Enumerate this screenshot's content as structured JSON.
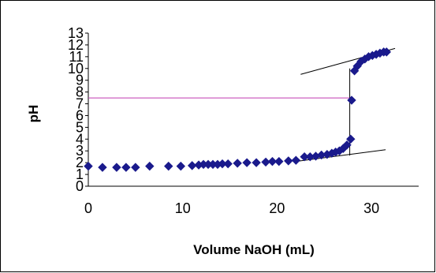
{
  "chart_data": {
    "type": "scatter",
    "xlabel": "Volume NaOH (mL)",
    "ylabel": "pH",
    "xlim": [
      0,
      35
    ],
    "ylim": [
      0,
      13
    ],
    "x_ticks": [
      0,
      10,
      20,
      30
    ],
    "x_tick_labels": [
      "0",
      "10",
      "20",
      "30"
    ],
    "y_ticks": [
      0,
      1,
      2,
      3,
      4,
      5,
      6,
      7,
      8,
      9,
      10,
      11,
      12,
      13
    ],
    "y_tick_labels": [
      "0",
      "1",
      "2",
      "3",
      "4",
      "5",
      "6",
      "7",
      "8",
      "9",
      "10",
      "11",
      "12",
      "13"
    ],
    "grid": false,
    "legend": "none",
    "series": [
      {
        "marker": "diamond",
        "color": "#1a1a8c",
        "points": [
          [
            0,
            1.7
          ],
          [
            1.5,
            1.6
          ],
          [
            3,
            1.6
          ],
          [
            4,
            1.6
          ],
          [
            5,
            1.6
          ],
          [
            6.5,
            1.7
          ],
          [
            8.5,
            1.7
          ],
          [
            9.8,
            1.7
          ],
          [
            11,
            1.75
          ],
          [
            11.7,
            1.8
          ],
          [
            12.2,
            1.85
          ],
          [
            12.7,
            1.85
          ],
          [
            13.2,
            1.85
          ],
          [
            13.7,
            1.85
          ],
          [
            14.2,
            1.9
          ],
          [
            14.8,
            1.9
          ],
          [
            15.8,
            1.95
          ],
          [
            16.8,
            2.0
          ],
          [
            17.8,
            2.0
          ],
          [
            18.8,
            2.05
          ],
          [
            19.5,
            2.1
          ],
          [
            20.2,
            2.1
          ],
          [
            21.2,
            2.15
          ],
          [
            22,
            2.2
          ],
          [
            22.9,
            2.5
          ],
          [
            23.5,
            2.5
          ],
          [
            24.1,
            2.55
          ],
          [
            24.7,
            2.65
          ],
          [
            25.3,
            2.7
          ],
          [
            25.8,
            2.8
          ],
          [
            26.2,
            2.9
          ],
          [
            26.6,
            3.0
          ],
          [
            27,
            3.2
          ],
          [
            27.4,
            3.5
          ],
          [
            27.8,
            4.0
          ],
          [
            27.9,
            7.3
          ],
          [
            28.2,
            9.8
          ],
          [
            28.5,
            10.2
          ],
          [
            28.9,
            10.6
          ],
          [
            29.3,
            10.8
          ],
          [
            29.7,
            11.0
          ],
          [
            30.1,
            11.1
          ],
          [
            30.5,
            11.2
          ],
          [
            30.9,
            11.3
          ],
          [
            31.3,
            11.4
          ],
          [
            31.6,
            11.4
          ]
        ]
      }
    ],
    "reference_lines": [
      {
        "kind": "horizontal",
        "y": 7.5,
        "color": "#c03ab0"
      },
      {
        "kind": "segment",
        "x1": 22,
        "y1": 2.1,
        "x2": 31.5,
        "y2": 3.1,
        "color": "#000000"
      },
      {
        "kind": "segment",
        "x1": 22.5,
        "y1": 9.5,
        "x2": 32.5,
        "y2": 11.7,
        "color": "#000000"
      },
      {
        "kind": "segment",
        "x1": 27.7,
        "y1": 2.6,
        "x2": 27.7,
        "y2": 10.0,
        "color": "#000000"
      }
    ]
  }
}
